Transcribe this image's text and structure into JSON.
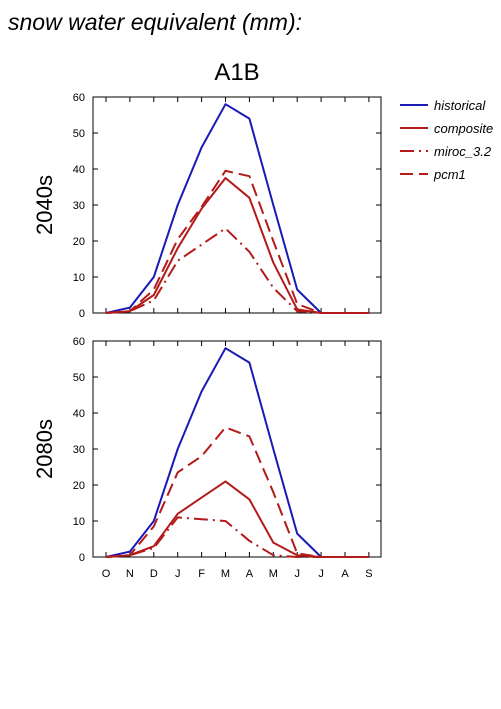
{
  "page_title": "snow water equivalent (mm):",
  "scenario": "A1B",
  "chart_data": [
    {
      "type": "line",
      "panel_label": "2040s",
      "categories": [
        "O",
        "N",
        "D",
        "J",
        "F",
        "M",
        "A",
        "M",
        "J",
        "J",
        "A",
        "S"
      ],
      "ylim": [
        0,
        60
      ],
      "yticks": [
        0,
        10,
        20,
        30,
        40,
        50,
        60
      ],
      "grid": false,
      "series": [
        {
          "name": "historical",
          "color": "#1a1ab4",
          "dash": "solid",
          "values": [
            0,
            1.5,
            10,
            30,
            46,
            58,
            54,
            30,
            6.5,
            0,
            0,
            0
          ]
        },
        {
          "name": "composite",
          "color": "#b41a1a",
          "dash": "solid",
          "values": [
            0,
            0.5,
            5,
            18,
            29,
            37.5,
            32,
            14,
            1,
            0,
            0,
            0
          ]
        },
        {
          "name": "miroc_3.2",
          "color": "#b41a1a",
          "dash": "dashdot",
          "values": [
            0,
            0.5,
            3.5,
            14.5,
            19,
            23.5,
            17,
            7,
            0.5,
            0,
            0,
            0
          ]
        },
        {
          "name": "pcm1",
          "color": "#b41a1a",
          "dash": "dash",
          "values": [
            0,
            0.5,
            6.5,
            20.5,
            29.5,
            39.5,
            38,
            20,
            2.5,
            0,
            0,
            0
          ]
        }
      ]
    },
    {
      "type": "line",
      "panel_label": "2080s",
      "categories": [
        "O",
        "N",
        "D",
        "J",
        "F",
        "M",
        "A",
        "M",
        "J",
        "J",
        "A",
        "S"
      ],
      "ylim": [
        0,
        60
      ],
      "yticks": [
        0,
        10,
        20,
        30,
        40,
        50,
        60
      ],
      "grid": false,
      "series": [
        {
          "name": "historical",
          "color": "#1a1ab4",
          "dash": "solid",
          "values": [
            0,
            1.5,
            10,
            30,
            46,
            58,
            54,
            30,
            6.5,
            0,
            0,
            0
          ]
        },
        {
          "name": "composite",
          "color": "#b41a1a",
          "dash": "solid",
          "values": [
            0,
            0.5,
            3,
            12,
            16.5,
            21,
            16,
            4,
            0.5,
            0,
            0,
            0
          ]
        },
        {
          "name": "miroc_3.2",
          "color": "#b41a1a",
          "dash": "dashdot",
          "values": [
            0,
            0.5,
            2.5,
            11,
            10.5,
            10,
            4.5,
            0.5,
            0,
            0,
            0,
            0
          ]
        },
        {
          "name": "pcm1",
          "color": "#b41a1a",
          "dash": "dash",
          "values": [
            0,
            0.5,
            8.5,
            23.5,
            28,
            36,
            33.5,
            18,
            1,
            0,
            0,
            0
          ]
        }
      ]
    }
  ],
  "legend": {
    "placement": "right",
    "entries": [
      {
        "name": "historical",
        "color": "#1a1ab4",
        "dash": "solid"
      },
      {
        "name": "composite",
        "color": "#b41a1a",
        "dash": "solid"
      },
      {
        "name": "miroc_3.2",
        "color": "#b41a1a",
        "dash": "dashdot"
      },
      {
        "name": "pcm1",
        "color": "#b41a1a",
        "dash": "dash"
      }
    ]
  }
}
